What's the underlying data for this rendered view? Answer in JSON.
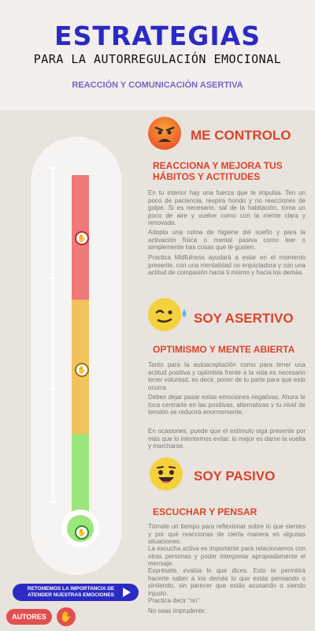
{
  "header": {
    "title": "ESTRATEGIAS",
    "subtitle": "PARA LA AUTORREGULACIÓN EMOCIONAL",
    "tagline": "REACCIÓN Y COMUNICACIÓN ASERTIVA"
  },
  "sections": [
    {
      "title": "ME CONTROLO",
      "subtitle_line1": "REACCIONA Y MEJORA TUS",
      "subtitle_line2": "HÁBITOS Y ACTITUDES",
      "paragraphs": [
        "En tu interior hay una fuerza que te impulsa. Ten un poco de paciencia, respira hondo y no reacciones de golpe. Si es necesario, sal de la habitación, toma un poco de aire y vuelve como con la mente clara y renovada.",
        "Adopta una rutina de higiene del sueño y para la activación física o mental pasiva como leer o simplemente has cosas que te gusten.",
        "Practica Midfulness ayudará a estar en el momento presente, con una mentalidad no enjuiciadora y con una actitud de compasión hacia ti mismo y hacia los demás."
      ],
      "color": "#d9442e"
    },
    {
      "title": "SOY ASERTIVO",
      "subtitle_line1": "OPTIMISMO Y MENTE ABIERTA",
      "paragraphs": [
        "Tanto para la autoaceptación como para tener una actitud positiva y optimista frente a la vida es necesario tener voluntad, es decir, poner de tu parte para que esto ocurra.",
        "Debes dejar pasar estas emociones negativas. Ahora te toca centrarte en las positivas, alternativas y tu nivel de tensión se reducirá enormemente.",
        "En ocasiones, puede que el estímulo siga presente por más que lo intentemos evitar, lo mejor es darse la vuelta y marcharse."
      ]
    },
    {
      "title": "SOY PASIVO",
      "subtitle_line1": "ESCUCHAR Y PENSAR",
      "paragraphs": [
        "Tómate un tiempo para reflexionar sobre lo que sientes y por qué reaccionas de cierta manera en algunas situaciones.",
        "La escucha activa es importante para relacionarnos con otras personas y poder interpretar apropiadamente el mensaje.",
        "Exprésate, evalúa lo que dices. Esto te permitirá hacerte saber a los demás lo que estás pensando o sintiendo, sin parecer que estás acusando o siendo injusto.",
        "Practica decir “no”.",
        "No seas imprudente."
      ]
    }
  ],
  "thermometer": {
    "levels": [
      "red",
      "yellow",
      "green"
    ],
    "colors": {
      "red": "#ee7a7a",
      "yellow": "#f1c35e",
      "green": "#9be77b"
    },
    "marker_icon": "hand-icon"
  },
  "footer": {
    "cta_line1": "RETOMEMOS LA IMPORTANCIA DE",
    "cta_line2": "ATENDER NUESTRAS EMOCIONES",
    "authors_label": "AUTORES"
  },
  "accent_colors": {
    "title_blue": "#2b2ac4",
    "section_red": "#d9442e",
    "tagline_purple": "#7a63c9"
  }
}
